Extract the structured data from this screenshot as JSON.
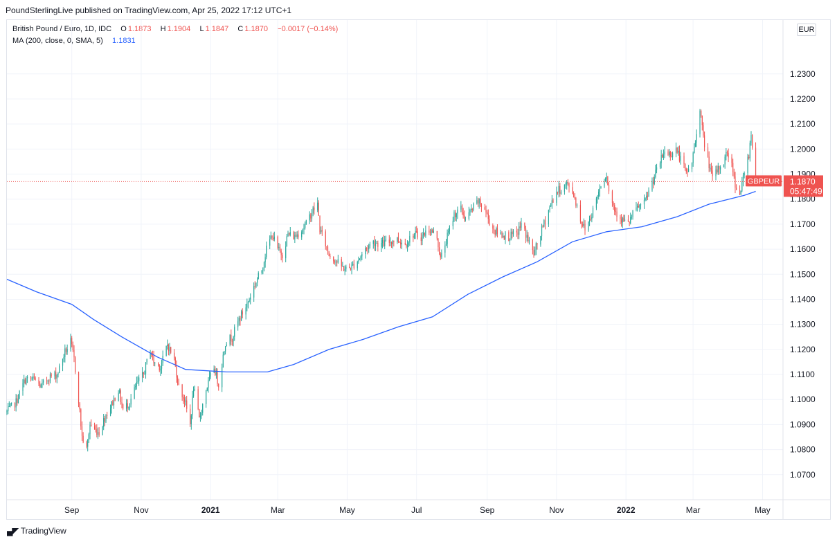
{
  "publisher": "PoundSterlingLive published on TradingView.com, Apr 25, 2022 17:12 UTC+1",
  "legend": {
    "symbol": "British Pound / Euro, 1D, IDC",
    "o_label": "O",
    "o_value": "1.1873",
    "h_label": "H",
    "h_value": "1.1904",
    "l_label": "L",
    "l_value": "1.1847",
    "c_label": "C",
    "c_value": "1.1870",
    "change": "−0.0017 (−0.14%)",
    "ma_label": "MA (200, close, 0, SMA, 5)",
    "ma_value": "1.1831"
  },
  "currency_button": "EUR",
  "price_tag": {
    "symbol": "GBPEUR",
    "price": "1.1870",
    "countdown": "05:47:49"
  },
  "footer": {
    "brand": "TradingView",
    "logo": "tradingview-logo-icon"
  },
  "colors": {
    "up": "#26a69a",
    "down": "#ef5350",
    "ma": "#2962ff",
    "grid": "#f0f3fa"
  },
  "chart_data": {
    "type": "candlestick",
    "title": "British Pound / Euro, 1D, IDC",
    "ylim": [
      1.06,
      1.2515
    ],
    "y_ticks": [
      "1.0700",
      "1.0800",
      "1.0900",
      "1.1000",
      "1.1100",
      "1.1200",
      "1.1300",
      "1.1400",
      "1.1500",
      "1.1600",
      "1.1700",
      "1.1800",
      "1.1900",
      "1.2000",
      "1.2100",
      "1.2200",
      "1.2300"
    ],
    "x_ticks": [
      {
        "label": "Sep",
        "date": "2020-09-01",
        "bold": false
      },
      {
        "label": "Nov",
        "date": "2020-11-01",
        "bold": false
      },
      {
        "label": "2021",
        "date": "2021-01-01",
        "bold": true
      },
      {
        "label": "Mar",
        "date": "2021-03-01",
        "bold": false
      },
      {
        "label": "May",
        "date": "2021-05-01",
        "bold": false
      },
      {
        "label": "Jul",
        "date": "2021-07-01",
        "bold": false
      },
      {
        "label": "Sep",
        "date": "2021-09-01",
        "bold": false
      },
      {
        "label": "Nov",
        "date": "2021-11-01",
        "bold": false
      },
      {
        "label": "2022",
        "date": "2022-01-01",
        "bold": true
      },
      {
        "label": "Mar",
        "date": "2022-03-01",
        "bold": false
      },
      {
        "label": "May",
        "date": "2022-05-01",
        "bold": false
      }
    ],
    "x_range": [
      "2020-07-06",
      "2022-05-19"
    ],
    "last_price": 1.187,
    "close_path": [
      [
        "2020-07-06",
        1.095
      ],
      [
        "2020-07-14",
        1.099
      ],
      [
        "2020-07-22",
        1.108
      ],
      [
        "2020-07-30",
        1.108
      ],
      [
        "2020-08-05",
        1.105
      ],
      [
        "2020-08-12",
        1.109
      ],
      [
        "2020-08-19",
        1.11
      ],
      [
        "2020-08-26",
        1.119
      ],
      [
        "2020-08-31",
        1.123
      ],
      [
        "2020-09-03",
        1.116
      ],
      [
        "2020-09-07",
        1.1
      ],
      [
        "2020-09-10",
        1.085
      ],
      [
        "2020-09-14",
        1.08
      ],
      [
        "2020-09-17",
        1.09
      ],
      [
        "2020-09-21",
        1.088
      ],
      [
        "2020-09-25",
        1.087
      ],
      [
        "2020-10-01",
        1.094
      ],
      [
        "2020-10-06",
        1.098
      ],
      [
        "2020-10-12",
        1.104
      ],
      [
        "2020-10-16",
        1.096
      ],
      [
        "2020-10-22",
        1.099
      ],
      [
        "2020-10-28",
        1.106
      ],
      [
        "2020-11-03",
        1.11
      ],
      [
        "2020-11-09",
        1.12
      ],
      [
        "2020-11-12",
        1.115
      ],
      [
        "2020-11-18",
        1.113
      ],
      [
        "2020-11-24",
        1.122
      ],
      [
        "2020-11-30",
        1.116
      ],
      [
        "2020-12-04",
        1.105
      ],
      [
        "2020-12-09",
        1.1
      ],
      [
        "2020-12-14",
        1.09
      ],
      [
        "2020-12-17",
        1.105
      ],
      [
        "2020-12-22",
        1.092
      ],
      [
        "2020-12-28",
        1.104
      ],
      [
        "2021-01-04",
        1.113
      ],
      [
        "2021-01-08",
        1.106
      ],
      [
        "2021-01-14",
        1.123
      ],
      [
        "2021-01-20",
        1.125
      ],
      [
        "2021-01-26",
        1.132
      ],
      [
        "2021-02-02",
        1.138
      ],
      [
        "2021-02-08",
        1.145
      ],
      [
        "2021-02-15",
        1.152
      ],
      [
        "2021-02-19",
        1.16
      ],
      [
        "2021-02-24",
        1.166
      ],
      [
        "2021-03-01",
        1.16
      ],
      [
        "2021-03-05",
        1.158
      ],
      [
        "2021-03-10",
        1.166
      ],
      [
        "2021-03-16",
        1.165
      ],
      [
        "2021-03-22",
        1.168
      ],
      [
        "2021-03-26",
        1.17
      ],
      [
        "2021-03-31",
        1.175
      ],
      [
        "2021-04-05",
        1.178
      ],
      [
        "2021-04-07",
        1.168
      ],
      [
        "2021-04-12",
        1.162
      ],
      [
        "2021-04-15",
        1.158
      ],
      [
        "2021-04-20",
        1.156
      ],
      [
        "2021-04-26",
        1.153
      ],
      [
        "2021-04-30",
        1.152
      ],
      [
        "2021-05-05",
        1.153
      ],
      [
        "2021-05-11",
        1.156
      ],
      [
        "2021-05-17",
        1.16
      ],
      [
        "2021-05-24",
        1.163
      ],
      [
        "2021-05-31",
        1.162
      ],
      [
        "2021-06-07",
        1.163
      ],
      [
        "2021-06-14",
        1.164
      ],
      [
        "2021-06-21",
        1.162
      ],
      [
        "2021-06-28",
        1.166
      ],
      [
        "2021-07-05",
        1.165
      ],
      [
        "2021-07-12",
        1.168
      ],
      [
        "2021-07-19",
        1.165
      ],
      [
        "2021-07-22",
        1.156
      ],
      [
        "2021-07-28",
        1.165
      ],
      [
        "2021-08-03",
        1.174
      ],
      [
        "2021-08-09",
        1.176
      ],
      [
        "2021-08-13",
        1.172
      ],
      [
        "2021-08-19",
        1.176
      ],
      [
        "2021-08-24",
        1.179
      ],
      [
        "2021-08-30",
        1.176
      ],
      [
        "2021-09-03",
        1.171
      ],
      [
        "2021-09-08",
        1.167
      ],
      [
        "2021-09-14",
        1.166
      ],
      [
        "2021-09-20",
        1.165
      ],
      [
        "2021-09-27",
        1.166
      ],
      [
        "2021-10-01",
        1.17
      ],
      [
        "2021-10-06",
        1.165
      ],
      [
        "2021-10-12",
        1.158
      ],
      [
        "2021-10-15",
        1.162
      ],
      [
        "2021-10-20",
        1.169
      ],
      [
        "2021-10-26",
        1.177
      ],
      [
        "2021-11-01",
        1.183
      ],
      [
        "2021-11-05",
        1.184
      ],
      [
        "2021-11-10",
        1.186
      ],
      [
        "2021-11-15",
        1.183
      ],
      [
        "2021-11-18",
        1.179
      ],
      [
        "2021-11-22",
        1.172
      ],
      [
        "2021-11-26",
        1.168
      ],
      [
        "2021-12-01",
        1.173
      ],
      [
        "2021-12-06",
        1.18
      ],
      [
        "2021-12-10",
        1.186
      ],
      [
        "2021-12-15",
        1.19
      ],
      [
        "2021-12-17",
        1.183
      ],
      [
        "2021-12-22",
        1.176
      ],
      [
        "2021-12-28",
        1.172
      ],
      [
        "2022-01-03",
        1.17
      ],
      [
        "2022-01-07",
        1.174
      ],
      [
        "2022-01-12",
        1.177
      ],
      [
        "2022-01-17",
        1.178
      ],
      [
        "2022-01-21",
        1.183
      ],
      [
        "2022-01-26",
        1.189
      ],
      [
        "2022-01-31",
        1.195
      ],
      [
        "2022-02-04",
        1.199
      ],
      [
        "2022-02-09",
        1.198
      ],
      [
        "2022-02-14",
        1.2
      ],
      [
        "2022-02-18",
        1.196
      ],
      [
        "2022-02-23",
        1.19
      ],
      [
        "2022-02-28",
        1.195
      ],
      [
        "2022-03-03",
        1.203
      ],
      [
        "2022-03-07",
        1.217
      ],
      [
        "2022-03-10",
        1.204
      ],
      [
        "2022-03-15",
        1.194
      ],
      [
        "2022-03-18",
        1.188
      ],
      [
        "2022-03-23",
        1.192
      ],
      [
        "2022-03-28",
        1.195
      ],
      [
        "2022-03-31",
        1.199
      ],
      [
        "2022-04-05",
        1.192
      ],
      [
        "2022-04-07",
        1.186
      ],
      [
        "2022-04-11",
        1.182
      ],
      [
        "2022-04-14",
        1.188
      ],
      [
        "2022-04-19",
        1.198
      ],
      [
        "2022-04-21",
        1.206
      ],
      [
        "2022-04-22",
        1.202
      ],
      [
        "2022-04-25",
        1.187
      ]
    ],
    "ma_series": {
      "name": "MA (200, close, 0, SMA, 5)",
      "points": [
        [
          "2020-07-06",
          1.148
        ],
        [
          "2020-08-01",
          1.143
        ],
        [
          "2020-09-01",
          1.138
        ],
        [
          "2020-09-20",
          1.132
        ],
        [
          "2020-10-15",
          1.125
        ],
        [
          "2020-11-15",
          1.117
        ],
        [
          "2020-12-10",
          1.112
        ],
        [
          "2021-01-15",
          1.111
        ],
        [
          "2021-02-20",
          1.111
        ],
        [
          "2021-03-15",
          1.114
        ],
        [
          "2021-04-15",
          1.12
        ],
        [
          "2021-05-15",
          1.124
        ],
        [
          "2021-06-15",
          1.129
        ],
        [
          "2021-07-15",
          1.133
        ],
        [
          "2021-08-15",
          1.142
        ],
        [
          "2021-09-15",
          1.149
        ],
        [
          "2021-10-15",
          1.155
        ],
        [
          "2021-11-15",
          1.163
        ],
        [
          "2021-12-15",
          1.167
        ],
        [
          "2022-01-15",
          1.169
        ],
        [
          "2022-02-15",
          1.173
        ],
        [
          "2022-03-15",
          1.178
        ],
        [
          "2022-04-15",
          1.1815
        ],
        [
          "2022-04-25",
          1.1831
        ]
      ]
    }
  }
}
